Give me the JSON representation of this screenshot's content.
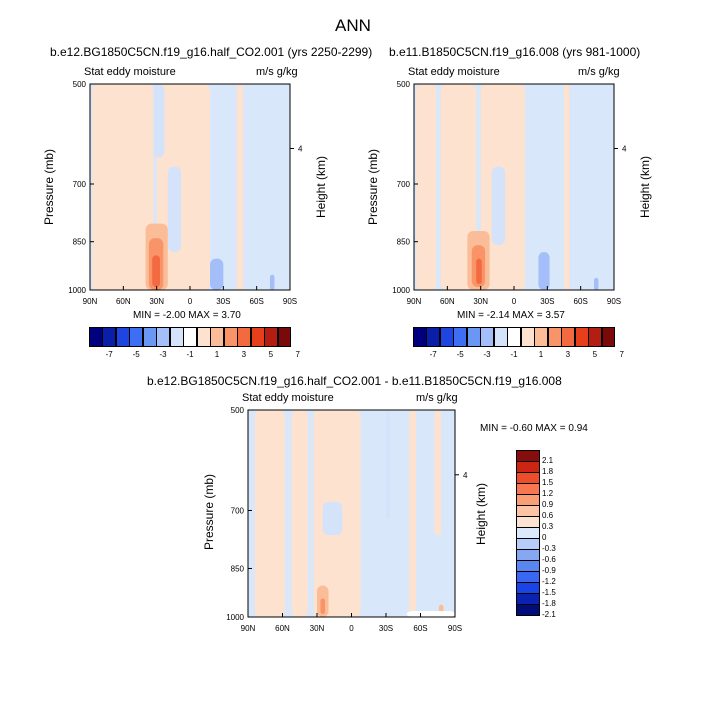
{
  "page": {
    "title": "ANN"
  },
  "palettes": {
    "full": [
      "#00007d",
      "#0a1fa8",
      "#1f45e0",
      "#3d6ef4",
      "#6a96f4",
      "#a3bef8",
      "#d4e3fa",
      "#ffffff",
      "#fde2cf",
      "#fbbd98",
      "#f89468",
      "#f36a40",
      "#e73e1c",
      "#b41e12",
      "#7a0a0a"
    ],
    "diff": [
      "#000d7a",
      "#0a22b0",
      "#1a44e6",
      "#3a66f0",
      "#5a86f2",
      "#87a6f4",
      "#b7ccf7",
      "#dce8fb",
      "#fbe3d3",
      "#fcc3a5",
      "#fa9e76",
      "#f67750",
      "#ee4d2c",
      "#cd2514",
      "#8a0d0d"
    ]
  },
  "chart_data": [
    {
      "type": "contour",
      "title": "b.e12.BG1850C5CN.f19_g16.half_CO2.001 (yrs 2250-2299)",
      "left_label": "Stat eddy moisture",
      "right_label": "m/s g/kg",
      "ylabel": "Pressure (mb)",
      "y2label": "Height (km)",
      "x_ticks": [
        "90N",
        "60N",
        "30N",
        "0",
        "30S",
        "60S",
        "90S"
      ],
      "y_ticks": [
        "500",
        "700",
        "850",
        "1000"
      ],
      "y2_ticks": [
        "4"
      ],
      "minmax_text": "MIN =  -2.00   MAX =   3.70",
      "min": -2.0,
      "max": 3.7,
      "colorbar": {
        "orientation": "horizontal",
        "palette": "full",
        "labels": [
          "-7",
          "-5",
          "-3",
          "-1",
          "1",
          "3",
          "5",
          "7"
        ]
      },
      "regions": [
        {
          "level": "pos1",
          "lat": [
            -88,
            -33
          ],
          "p": [
            500,
            1000
          ]
        },
        {
          "level": "pos1",
          "lat": [
            -30,
            18
          ],
          "p": [
            500,
            1000
          ]
        },
        {
          "level": "neg1",
          "lat": [
            -33,
            -23
          ],
          "p": [
            500,
            640
          ]
        },
        {
          "level": "neg1",
          "lat": [
            -20,
            -8
          ],
          "p": [
            660,
            880
          ]
        },
        {
          "level": "pos1",
          "lat": [
            42,
            48
          ],
          "p": [
            500,
            1000
          ]
        },
        {
          "level": "neg2",
          "lat": [
            18,
            30
          ],
          "p": [
            900,
            1000
          ]
        },
        {
          "level": "neg2",
          "lat": [
            72,
            76
          ],
          "p": [
            950,
            1000
          ]
        },
        {
          "level": "pos2",
          "lat": [
            -40,
            -20
          ],
          "p": [
            800,
            1000
          ]
        },
        {
          "level": "pos3",
          "lat": [
            -37,
            -24
          ],
          "p": [
            840,
            1000
          ]
        },
        {
          "level": "pos4",
          "lat": [
            -34,
            -27
          ],
          "p": [
            890,
            990
          ]
        }
      ]
    },
    {
      "type": "contour",
      "title": "b.e11.B1850C5CN.f19_g16.008 (yrs 981-1000)",
      "left_label": "Stat eddy moisture",
      "right_label": "m/s g/kg",
      "ylabel": "Pressure (mb)",
      "y2label": "Height (km)",
      "x_ticks": [
        "90N",
        "60N",
        "30N",
        "0",
        "30S",
        "60S",
        "90S"
      ],
      "y_ticks": [
        "500",
        "700",
        "850",
        "1000"
      ],
      "y2_ticks": [
        "4"
      ],
      "minmax_text": "MIN =  -2.14   MAX =   3.57",
      "min": -2.14,
      "max": 3.57,
      "colorbar": {
        "orientation": "horizontal",
        "palette": "full",
        "labels": [
          "-7",
          "-5",
          "-3",
          "-1",
          "1",
          "3",
          "5",
          "7"
        ]
      },
      "regions": [
        {
          "level": "pos1",
          "lat": [
            -88,
            -70
          ],
          "p": [
            500,
            1000
          ]
        },
        {
          "level": "pos1",
          "lat": [
            -66,
            -34
          ],
          "p": [
            500,
            1000
          ]
        },
        {
          "level": "pos1",
          "lat": [
            -30,
            10
          ],
          "p": [
            500,
            1000
          ]
        },
        {
          "level": "neg1",
          "lat": [
            -20,
            -8
          ],
          "p": [
            660,
            860
          ]
        },
        {
          "level": "pos1",
          "lat": [
            45,
            50
          ],
          "p": [
            500,
            1000
          ]
        },
        {
          "level": "neg2",
          "lat": [
            22,
            32
          ],
          "p": [
            880,
            1000
          ]
        },
        {
          "level": "neg2",
          "lat": [
            72,
            76
          ],
          "p": [
            960,
            1000
          ]
        },
        {
          "level": "pos2",
          "lat": [
            -42,
            -22
          ],
          "p": [
            820,
            1000
          ]
        },
        {
          "level": "pos3",
          "lat": [
            -38,
            -26
          ],
          "p": [
            860,
            990
          ]
        },
        {
          "level": "pos4",
          "lat": [
            -34,
            -29
          ],
          "p": [
            900,
            980
          ]
        }
      ]
    },
    {
      "type": "contour",
      "title": "b.e12.BG1850C5CN.f19_g16.half_CO2.001 - b.e11.B1850C5CN.f19_g16.008",
      "left_label": "Stat eddy moisture",
      "right_label": "m/s g/kg",
      "ylabel": "Pressure (mb)",
      "y2label": "Height (km)",
      "x_ticks": [
        "90N",
        "60N",
        "30N",
        "0",
        "30S",
        "60S",
        "90S"
      ],
      "y_ticks": [
        "500",
        "700",
        "850",
        "1000"
      ],
      "y2_ticks": [
        "4"
      ],
      "minmax_text": "MIN =  -0.60   MAX =   0.94",
      "min": -0.6,
      "max": 0.94,
      "colorbar": {
        "orientation": "vertical",
        "palette": "diff",
        "labels": [
          "2.1",
          "1.8",
          "1.5",
          "1.2",
          "0.9",
          "0.6",
          "0.3",
          "0",
          "-0.3",
          "-0.6",
          "-0.9",
          "-1.2",
          "-1.5",
          "-1.8",
          "-2.1"
        ]
      },
      "regions": [
        {
          "level": "pos1",
          "lat": [
            -84,
            -58
          ],
          "p": [
            500,
            1000
          ]
        },
        {
          "level": "pos1",
          "lat": [
            -52,
            -38
          ],
          "p": [
            500,
            1000
          ]
        },
        {
          "level": "pos1",
          "lat": [
            -33,
            8
          ],
          "p": [
            500,
            1000
          ]
        },
        {
          "level": "neg1",
          "lat": [
            -25,
            -8
          ],
          "p": [
            680,
            760
          ]
        },
        {
          "level": "neg1",
          "lat": [
            30,
            33
          ],
          "p": [
            500,
            720
          ]
        },
        {
          "level": "pos1",
          "lat": [
            50,
            56
          ],
          "p": [
            500,
            1000
          ]
        },
        {
          "level": "pos1",
          "lat": [
            72,
            78
          ],
          "p": [
            500,
            760
          ]
        },
        {
          "level": "pos2",
          "lat": [
            -30,
            -20
          ],
          "p": [
            900,
            1000
          ]
        },
        {
          "level": "pos3",
          "lat": [
            -27,
            -23
          ],
          "p": [
            940,
            990
          ]
        },
        {
          "level": "pos2",
          "lat": [
            76,
            80
          ],
          "p": [
            960,
            1000
          ]
        },
        {
          "level": "white",
          "lat": [
            48,
            90
          ],
          "p": [
            980,
            1000
          ]
        }
      ]
    }
  ]
}
